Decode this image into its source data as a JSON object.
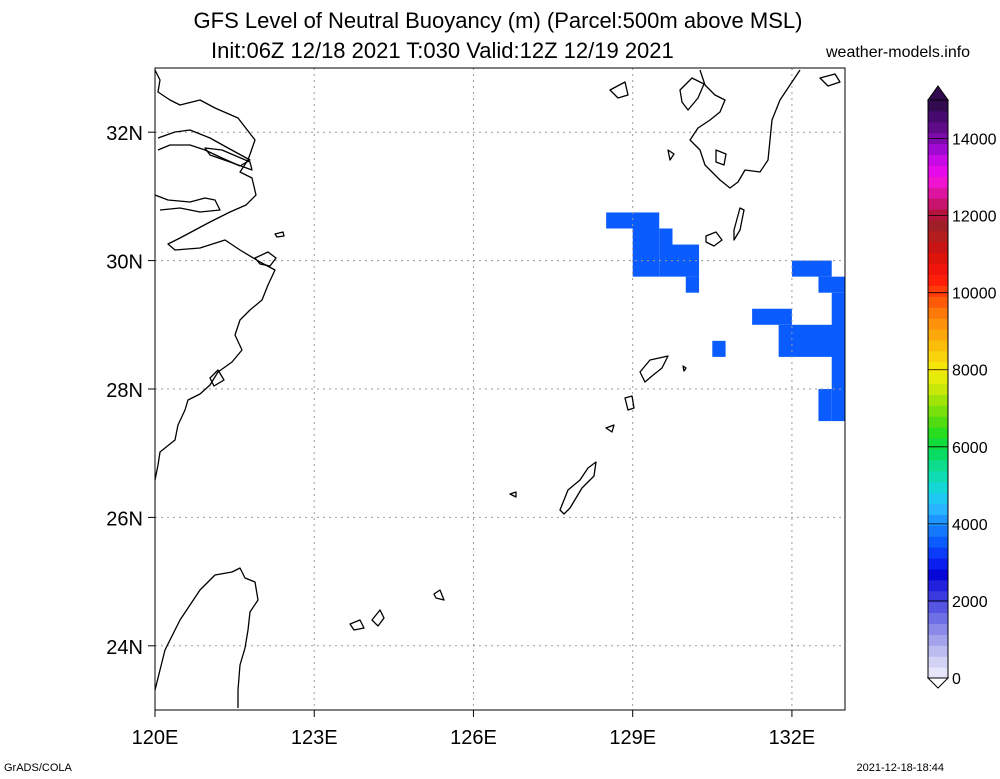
{
  "header": {
    "title_line1": "GFS Level of Neutral Buoyancy (m) (Parcel:500m above MSL)",
    "title_line2": "Init:06Z 12/18 2021 T:030 Valid:12Z 12/19 2021",
    "site": "weather-models.info"
  },
  "footer": {
    "left": "GrADS/COLA",
    "right": "2021-12-18-18:44"
  },
  "map": {
    "lon_range": [
      120,
      133
    ],
    "lat_range": [
      23,
      33
    ],
    "lon_ticks": [
      {
        "value": 120,
        "label": "120E"
      },
      {
        "value": 123,
        "label": "123E"
      },
      {
        "value": 126,
        "label": "126E"
      },
      {
        "value": 129,
        "label": "129E"
      },
      {
        "value": 132,
        "label": "132E"
      }
    ],
    "lat_ticks": [
      {
        "value": 24,
        "label": "24N"
      },
      {
        "value": 26,
        "label": "26N"
      },
      {
        "value": 28,
        "label": "28N"
      },
      {
        "value": 30,
        "label": "30N"
      },
      {
        "value": 32,
        "label": "32N"
      }
    ],
    "grid": true,
    "shaded_cells": [
      {
        "lon": [
          128.5,
          129.5
        ],
        "lat": [
          30.5,
          30.75
        ],
        "color": "#0a5cff"
      },
      {
        "lon": [
          129.0,
          129.5
        ],
        "lat": [
          29.75,
          30.5
        ],
        "color": "#0a5cff"
      },
      {
        "lon": [
          129.5,
          129.75
        ],
        "lat": [
          29.75,
          30.5
        ],
        "color": "#0a5cff"
      },
      {
        "lon": [
          129.75,
          130.25
        ],
        "lat": [
          29.75,
          30.25
        ],
        "color": "#0a5cff"
      },
      {
        "lon": [
          130.0,
          130.25
        ],
        "lat": [
          29.5,
          29.75
        ],
        "color": "#0a5cff"
      },
      {
        "lon": [
          130.5,
          130.75
        ],
        "lat": [
          28.5,
          28.75
        ],
        "color": "#0a5cff"
      },
      {
        "lon": [
          132.0,
          132.75
        ],
        "lat": [
          29.75,
          30.0
        ],
        "color": "#0a5cff"
      },
      {
        "lon": [
          132.5,
          133.0
        ],
        "lat": [
          29.5,
          29.75
        ],
        "color": "#0a5cff"
      },
      {
        "lon": [
          131.25,
          132.0
        ],
        "lat": [
          29.0,
          29.25
        ],
        "color": "#0a5cff"
      },
      {
        "lon": [
          131.75,
          133.0
        ],
        "lat": [
          28.5,
          29.0
        ],
        "color": "#0a5cff"
      },
      {
        "lon": [
          132.75,
          133.0
        ],
        "lat": [
          27.5,
          29.5
        ],
        "color": "#0a5cff"
      },
      {
        "lon": [
          132.5,
          132.75
        ],
        "lat": [
          27.5,
          28.0
        ],
        "color": "#0a5cff"
      }
    ]
  },
  "colorbar": {
    "range": [
      0,
      15000
    ],
    "labels": [
      {
        "value": 0,
        "label": "0"
      },
      {
        "value": 2000,
        "label": "2000"
      },
      {
        "value": 4000,
        "label": "4000"
      },
      {
        "value": 6000,
        "label": "6000"
      },
      {
        "value": 8000,
        "label": "8000"
      },
      {
        "value": 10000,
        "label": "10000"
      },
      {
        "value": 12000,
        "label": "12000"
      },
      {
        "value": 14000,
        "label": "14000"
      }
    ],
    "colors": [
      "#e6e6fa",
      "#d2d2f5",
      "#bcbcf0",
      "#a3a3ec",
      "#8a8ae8",
      "#6f6fe5",
      "#5555e2",
      "#3a3adf",
      "#2020dd",
      "#0606d6",
      "#0a1ef0",
      "#0a3cfa",
      "#0a5cff",
      "#1478ff",
      "#1e96ff",
      "#28b4ff",
      "#1ec8f0",
      "#14d8d8",
      "#10dcb4",
      "#0cdc8c",
      "#08dc64",
      "#10dc3c",
      "#28dc1e",
      "#50dc10",
      "#78e00a",
      "#a0e40a",
      "#c8e80a",
      "#e6ec0a",
      "#f5e60a",
      "#f8d20a",
      "#fabe0a",
      "#fca80a",
      "#fe920a",
      "#ff780a",
      "#ff5a0a",
      "#ff3c0a",
      "#ff1e0a",
      "#f0140a",
      "#dc140a",
      "#c81414",
      "#b41e1e",
      "#a01e28",
      "#b4143c",
      "#c8146e",
      "#dc14a0",
      "#f014d2",
      "#e60aeb",
      "#c80ae6",
      "#a00ad2",
      "#7d0aaa",
      "#5f0a87",
      "#460a6e",
      "#320a50"
    ]
  }
}
